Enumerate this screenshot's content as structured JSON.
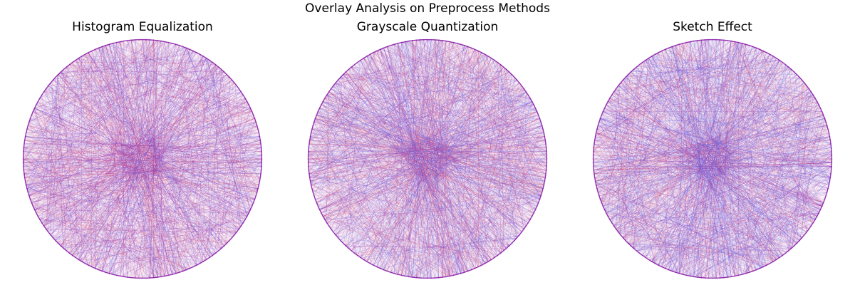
{
  "figure": {
    "title": "Overlay Analysis on Preprocess Methods"
  },
  "chart_data": [
    {
      "type": "string-art",
      "title": "Histogram Equalization",
      "axes": "off",
      "grid": false,
      "pins": 200,
      "layers": [
        {
          "color": "#8b1fa8",
          "weight": 0.62
        },
        {
          "color": "#e0526e",
          "weight": 0.15
        },
        {
          "color": "#5a5ee6",
          "weight": 0.08
        }
      ]
    },
    {
      "type": "string-art",
      "title": "Grayscale Quantization",
      "axes": "off",
      "grid": false,
      "pins": 200,
      "layers": [
        {
          "color": "#8b1fa8",
          "weight": 0.45
        },
        {
          "color": "#e0526e",
          "weight": 0.25
        },
        {
          "color": "#5a5ee6",
          "weight": 0.25
        }
      ]
    },
    {
      "type": "string-art",
      "title": "Sketch Effect",
      "axes": "off",
      "grid": false,
      "pins": 200,
      "layers": [
        {
          "color": "#8b1fa8",
          "weight": 0.42
        },
        {
          "color": "#e0526e",
          "weight": 0.2
        },
        {
          "color": "#5a5ee6",
          "weight": 0.35
        }
      ]
    }
  ]
}
